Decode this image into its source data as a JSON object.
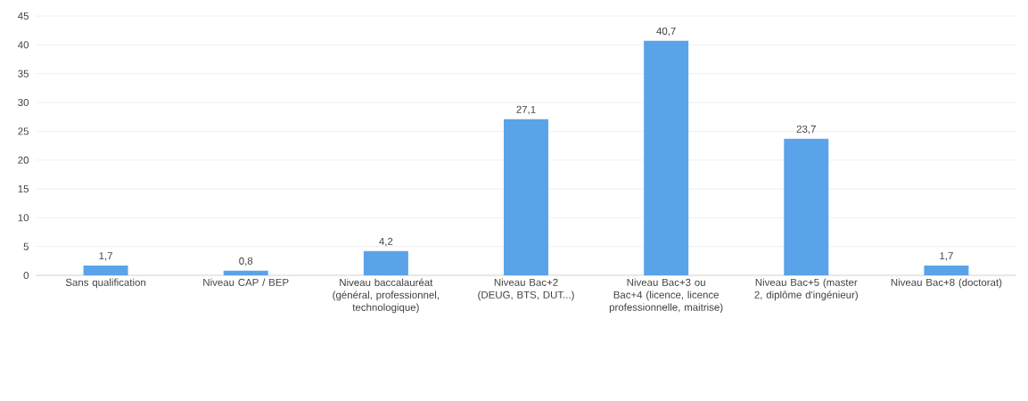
{
  "chart_data": {
    "type": "bar",
    "categories": [
      "Sans qualification",
      "Niveau CAP / BEP",
      "Niveau baccalauréat (général, professionnel, technologique)",
      "Niveau Bac+2 (DEUG, BTS, DUT...)",
      "Niveau Bac+3 ou Bac+4 (licence, licence professionnelle, maitrise)",
      "Niveau Bac+5 (master 2, diplôme d'ingénieur)",
      "Niveau Bac+8 (doctorat)"
    ],
    "values": [
      1.7,
      0.8,
      4.2,
      27.1,
      40.7,
      23.7,
      1.7
    ],
    "value_labels": [
      "1,7",
      "0,8",
      "4,2",
      "27,1",
      "40,7",
      "23,7",
      "1,7"
    ],
    "color": "#5ba3e8",
    "ylim": [
      0,
      45
    ],
    "yticks": [
      0,
      5,
      10,
      15,
      20,
      25,
      30,
      35,
      40,
      45
    ],
    "grid": "y"
  }
}
